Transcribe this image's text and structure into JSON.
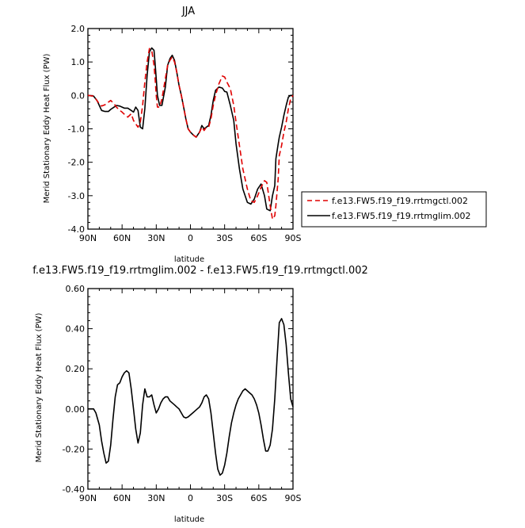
{
  "chart_data": [
    {
      "type": "line",
      "title": "JJA",
      "xlabel": "latitude",
      "ylabel": "Merid Stationary Eddy Heat Flux (PW)",
      "x_categories": [
        "90N",
        "60N",
        "30N",
        "0",
        "30S",
        "60S",
        "90S"
      ],
      "x_range": [
        90,
        -90
      ],
      "ylim": [
        -4.0,
        2.0
      ],
      "yticks": [
        "2.0",
        "1.0",
        "0.0",
        "-1.0",
        "-2.0",
        "-3.0",
        "-4.0"
      ],
      "legend_position": "right-outside",
      "series": [
        {
          "name": "f.e13.FW5.f19_f19.rrtmgctl.002",
          "color": "#e00000",
          "dash": true,
          "x": [
            90,
            85,
            80,
            78,
            75,
            72,
            70,
            67,
            65,
            62,
            60,
            57,
            55,
            52,
            50,
            48,
            46,
            44,
            42,
            40,
            38,
            36,
            34,
            32,
            31,
            30,
            29,
            27,
            25,
            22,
            20,
            18,
            16,
            14,
            12,
            10,
            8,
            6,
            4,
            2,
            0,
            -3,
            -5,
            -8,
            -10,
            -12,
            -14,
            -16,
            -18,
            -20,
            -22,
            -25,
            -28,
            -30,
            -32,
            -35,
            -38,
            -40,
            -43,
            -46,
            -50,
            -53,
            -56,
            -59,
            -62,
            -65,
            -67,
            -70,
            -72,
            -74,
            -75,
            -77,
            -78,
            -80,
            -82,
            -84,
            -86,
            -88,
            -90
          ],
          "y": [
            0.0,
            -0.02,
            -0.25,
            -0.32,
            -0.28,
            -0.2,
            -0.15,
            -0.25,
            -0.35,
            -0.45,
            -0.5,
            -0.6,
            -0.65,
            -0.55,
            -0.75,
            -0.85,
            -0.95,
            -0.8,
            -0.3,
            0.4,
            1.0,
            1.4,
            1.35,
            0.9,
            0.5,
            0.0,
            -0.35,
            -0.35,
            -0.1,
            0.5,
            0.9,
            1.05,
            1.15,
            1.0,
            0.7,
            0.3,
            0.0,
            -0.35,
            -0.7,
            -1.0,
            -1.1,
            -1.2,
            -1.25,
            -1.1,
            -0.95,
            -1.05,
            -0.95,
            -0.95,
            -0.7,
            -0.3,
            0.0,
            0.35,
            0.58,
            0.55,
            0.4,
            0.2,
            -0.3,
            -0.8,
            -1.5,
            -2.2,
            -2.8,
            -3.15,
            -3.2,
            -3.0,
            -2.75,
            -2.55,
            -2.6,
            -3.3,
            -3.7,
            -3.6,
            -3.3,
            -2.5,
            -1.8,
            -1.5,
            -1.1,
            -0.8,
            -0.4,
            -0.1,
            0.0
          ]
        },
        {
          "name": "f.e13.FW5.f19_f19.rrtmglim.002",
          "color": "#000000",
          "dash": false,
          "x": [
            90,
            85,
            82,
            80,
            78,
            75,
            72,
            70,
            67,
            65,
            62,
            60,
            58,
            55,
            52,
            50,
            48,
            46,
            44,
            42,
            40,
            38,
            36,
            34,
            32,
            31,
            30,
            29,
            27,
            25,
            22,
            20,
            18,
            16,
            14,
            12,
            10,
            8,
            6,
            4,
            2,
            0,
            -3,
            -5,
            -8,
            -10,
            -12,
            -14,
            -16,
            -18,
            -20,
            -22,
            -25,
            -28,
            -30,
            -32,
            -35,
            -38,
            -40,
            -43,
            -46,
            -50,
            -53,
            -56,
            -59,
            -62,
            -65,
            -67,
            -70,
            -72,
            -74,
            -75,
            -77,
            -78,
            -80,
            -82,
            -84,
            -86,
            -88,
            -90
          ],
          "y": [
            0.0,
            -0.02,
            -0.15,
            -0.3,
            -0.45,
            -0.48,
            -0.48,
            -0.42,
            -0.35,
            -0.3,
            -0.32,
            -0.35,
            -0.38,
            -0.38,
            -0.45,
            -0.5,
            -0.35,
            -0.45,
            -0.95,
            -1.0,
            -0.4,
            0.6,
            1.3,
            1.42,
            1.35,
            0.95,
            0.5,
            0.0,
            -0.3,
            -0.3,
            0.25,
            0.9,
            1.1,
            1.2,
            1.05,
            0.7,
            0.3,
            0.0,
            -0.35,
            -0.7,
            -1.0,
            -1.1,
            -1.2,
            -1.25,
            -1.1,
            -0.9,
            -1.0,
            -0.95,
            -0.9,
            -0.6,
            -0.15,
            0.15,
            0.25,
            0.22,
            0.12,
            0.1,
            -0.3,
            -0.75,
            -1.45,
            -2.2,
            -2.8,
            -3.2,
            -3.25,
            -3.1,
            -2.8,
            -2.65,
            -3.0,
            -3.4,
            -3.45,
            -3.0,
            -2.7,
            -1.9,
            -1.45,
            -1.25,
            -0.95,
            -0.6,
            -0.3,
            -0.05,
            0.0,
            0.0
          ]
        }
      ]
    },
    {
      "type": "line",
      "title": "f.e13.FW5.f19_f19.rrtmglim.002 - f.e13.FW5.f19_f19.rrtmgctl.002",
      "xlabel": "latitude",
      "ylabel": "Merid Stationary Eddy Heat Flux (PW)",
      "x_categories": [
        "90N",
        "60N",
        "30N",
        "0",
        "30S",
        "60S",
        "90S"
      ],
      "x_range": [
        90,
        -90
      ],
      "ylim": [
        -0.4,
        0.6
      ],
      "yticks": [
        "0.60",
        "0.40",
        "0.20",
        "0.00",
        "-0.20",
        "-0.40"
      ],
      "series": [
        {
          "name": "",
          "color": "#000000",
          "dash": false,
          "x": [
            90,
            87,
            85,
            83,
            80,
            78,
            76,
            74,
            72,
            70,
            68,
            66,
            64,
            62,
            60,
            58,
            56,
            54,
            52,
            50,
            48,
            46,
            44,
            42,
            40,
            38,
            36,
            34,
            32,
            30,
            28,
            26,
            24,
            22,
            20,
            18,
            16,
            14,
            12,
            10,
            8,
            6,
            4,
            2,
            0,
            -2,
            -4,
            -6,
            -8,
            -10,
            -12,
            -14,
            -16,
            -18,
            -20,
            -22,
            -24,
            -26,
            -28,
            -30,
            -32,
            -34,
            -36,
            -38,
            -40,
            -42,
            -44,
            -46,
            -48,
            -50,
            -52,
            -54,
            -56,
            -58,
            -60,
            -62,
            -64,
            -66,
            -68,
            -70,
            -72,
            -74,
            -76,
            -78,
            -80,
            -82,
            -84,
            -86,
            -88,
            -90
          ],
          "y": [
            0.0,
            0.0,
            0.0,
            -0.02,
            -0.08,
            -0.16,
            -0.22,
            -0.27,
            -0.26,
            -0.18,
            -0.05,
            0.06,
            0.12,
            0.13,
            0.16,
            0.18,
            0.19,
            0.18,
            0.1,
            0.0,
            -0.1,
            -0.17,
            -0.12,
            0.02,
            0.1,
            0.06,
            0.06,
            0.07,
            0.02,
            -0.02,
            0.0,
            0.03,
            0.05,
            0.06,
            0.06,
            0.04,
            0.03,
            0.02,
            0.01,
            0.0,
            -0.02,
            -0.04,
            -0.045,
            -0.04,
            -0.03,
            -0.02,
            -0.01,
            0.0,
            0.01,
            0.03,
            0.06,
            0.07,
            0.05,
            -0.02,
            -0.12,
            -0.22,
            -0.3,
            -0.33,
            -0.32,
            -0.28,
            -0.22,
            -0.14,
            -0.07,
            -0.02,
            0.02,
            0.05,
            0.07,
            0.09,
            0.1,
            0.09,
            0.08,
            0.07,
            0.05,
            0.02,
            -0.02,
            -0.08,
            -0.15,
            -0.21,
            -0.21,
            -0.18,
            -0.1,
            0.05,
            0.25,
            0.43,
            0.45,
            0.42,
            0.32,
            0.18,
            0.05,
            0.01
          ]
        }
      ]
    }
  ]
}
